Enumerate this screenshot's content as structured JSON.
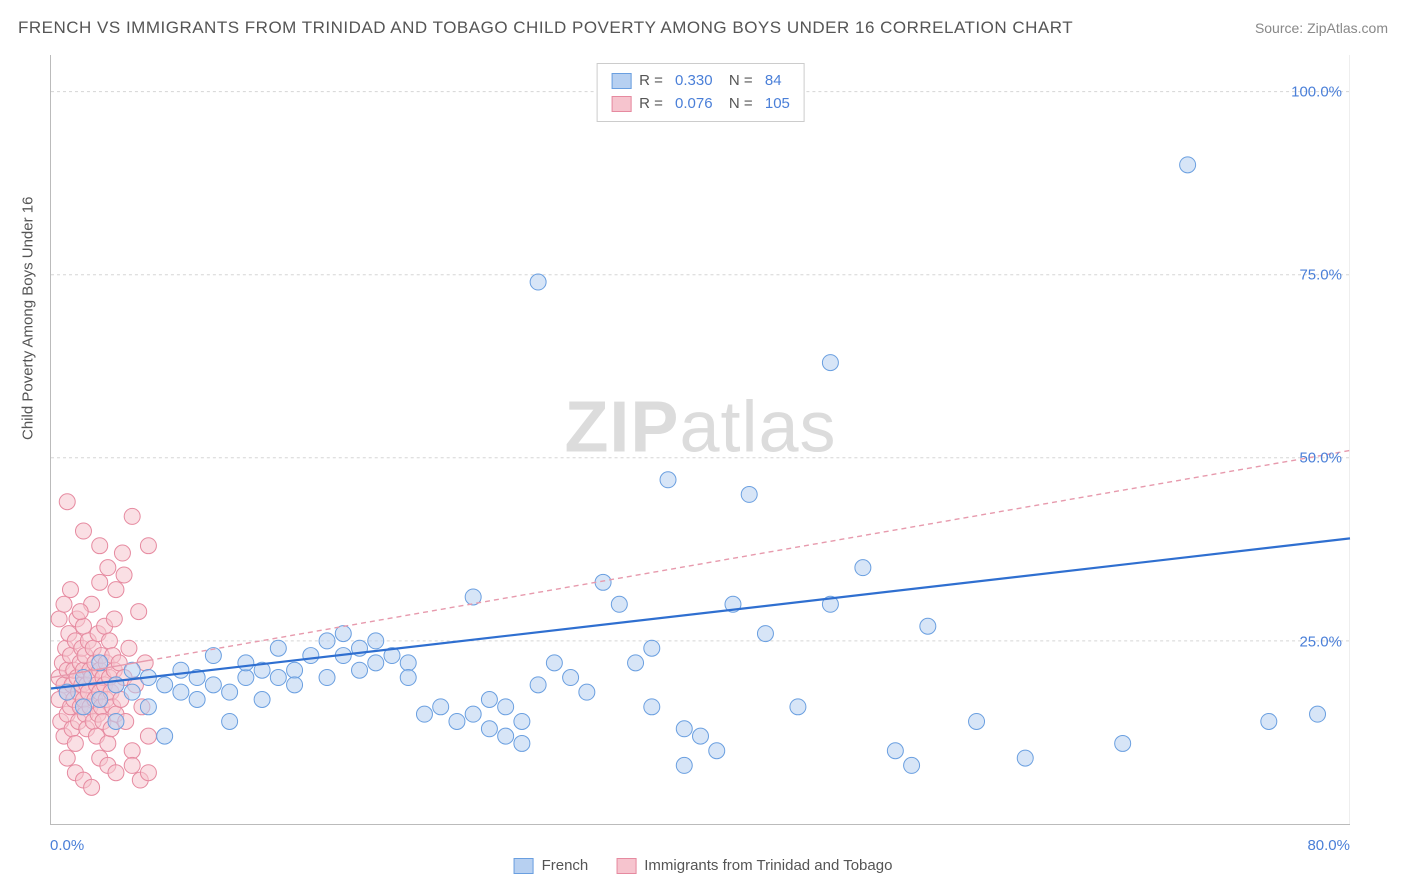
{
  "title": "FRENCH VS IMMIGRANTS FROM TRINIDAD AND TOBAGO CHILD POVERTY AMONG BOYS UNDER 16 CORRELATION CHART",
  "source": "Source: ZipAtlas.com",
  "watermark_a": "ZIP",
  "watermark_b": "atlas",
  "ylabel": "Child Poverty Among Boys Under 16",
  "chart": {
    "type": "scatter",
    "xlim": [
      0,
      80
    ],
    "ylim": [
      0,
      105
    ],
    "yticks": [
      25,
      50,
      75,
      100
    ],
    "ytick_labels": [
      "25.0%",
      "50.0%",
      "75.0%",
      "100.0%"
    ],
    "xtick_left": "0.0%",
    "xtick_right": "80.0%",
    "grid_color": "#d5d5d5",
    "background_color": "#ffffff",
    "marker_radius": 8,
    "marker_opacity": 0.55,
    "series": [
      {
        "name": "French",
        "color_fill": "#b7d0f1",
        "color_stroke": "#6a9fe0",
        "r_value": "0.330",
        "n_value": "84",
        "trend": {
          "x1": 0,
          "y1": 18.5,
          "x2": 80,
          "y2": 39,
          "stroke": "#2f6fd0",
          "width": 2.2,
          "dash": "none",
          "solid_until_x": 80
        },
        "points": [
          [
            1,
            18
          ],
          [
            2,
            20
          ],
          [
            2,
            16
          ],
          [
            3,
            22
          ],
          [
            3,
            17
          ],
          [
            4,
            19
          ],
          [
            4,
            14
          ],
          [
            5,
            21
          ],
          [
            5,
            18
          ],
          [
            6,
            20
          ],
          [
            6,
            16
          ],
          [
            7,
            19
          ],
          [
            7,
            12
          ],
          [
            8,
            18
          ],
          [
            8,
            21
          ],
          [
            9,
            20
          ],
          [
            9,
            17
          ],
          [
            10,
            19
          ],
          [
            10,
            23
          ],
          [
            11,
            18
          ],
          [
            11,
            14
          ],
          [
            12,
            20
          ],
          [
            12,
            22
          ],
          [
            13,
            21
          ],
          [
            13,
            17
          ],
          [
            14,
            20
          ],
          [
            14,
            24
          ],
          [
            15,
            21
          ],
          [
            15,
            19
          ],
          [
            16,
            23
          ],
          [
            17,
            25
          ],
          [
            17,
            20
          ],
          [
            18,
            23
          ],
          [
            18,
            26
          ],
          [
            19,
            24
          ],
          [
            19,
            21
          ],
          [
            20,
            25
          ],
          [
            20,
            22
          ],
          [
            21,
            23
          ],
          [
            22,
            22
          ],
          [
            22,
            20
          ],
          [
            23,
            15
          ],
          [
            24,
            16
          ],
          [
            25,
            14
          ],
          [
            26,
            31
          ],
          [
            26,
            15
          ],
          [
            27,
            17
          ],
          [
            27,
            13
          ],
          [
            28,
            16
          ],
          [
            28,
            12
          ],
          [
            29,
            14
          ],
          [
            29,
            11
          ],
          [
            30,
            74
          ],
          [
            30,
            19
          ],
          [
            31,
            22
          ],
          [
            32,
            20
          ],
          [
            33,
            18
          ],
          [
            34,
            33
          ],
          [
            35,
            30
          ],
          [
            36,
            22
          ],
          [
            37,
            24
          ],
          [
            37,
            16
          ],
          [
            38,
            47
          ],
          [
            39,
            8
          ],
          [
            39,
            13
          ],
          [
            40,
            12
          ],
          [
            41,
            10
          ],
          [
            42,
            30
          ],
          [
            43,
            45
          ],
          [
            44,
            26
          ],
          [
            46,
            16
          ],
          [
            48,
            63
          ],
          [
            48,
            30
          ],
          [
            50,
            35
          ],
          [
            52,
            10
          ],
          [
            53,
            8
          ],
          [
            54,
            27
          ],
          [
            57,
            14
          ],
          [
            60,
            9
          ],
          [
            66,
            11
          ],
          [
            70,
            90
          ],
          [
            75,
            14
          ],
          [
            78,
            15
          ]
        ]
      },
      {
        "name": "Immigrants from Trinidad and Tobago",
        "color_fill": "#f6c4ce",
        "color_stroke": "#e68aa0",
        "r_value": "0.076",
        "n_value": "105",
        "trend": {
          "x1": 0,
          "y1": 20,
          "x2": 80,
          "y2": 51,
          "stroke": "#e79aad",
          "width": 1.4,
          "dash": "5,4",
          "solid_until_x": 6
        },
        "points": [
          [
            0.5,
            17
          ],
          [
            0.5,
            20
          ],
          [
            0.6,
            14
          ],
          [
            0.7,
            22
          ],
          [
            0.8,
            19
          ],
          [
            0.8,
            12
          ],
          [
            0.9,
            24
          ],
          [
            1,
            18
          ],
          [
            1,
            15
          ],
          [
            1,
            21
          ],
          [
            1.1,
            26
          ],
          [
            1.2,
            16
          ],
          [
            1.2,
            23
          ],
          [
            1.3,
            19
          ],
          [
            1.3,
            13
          ],
          [
            1.4,
            21
          ],
          [
            1.4,
            17
          ],
          [
            1.5,
            25
          ],
          [
            1.5,
            11
          ],
          [
            1.6,
            20
          ],
          [
            1.6,
            28
          ],
          [
            1.7,
            18
          ],
          [
            1.7,
            14
          ],
          [
            1.8,
            22
          ],
          [
            1.8,
            16
          ],
          [
            1.9,
            24
          ],
          [
            1.9,
            19
          ],
          [
            2,
            21
          ],
          [
            2,
            17
          ],
          [
            2,
            27
          ],
          [
            2.1,
            15
          ],
          [
            2.1,
            23
          ],
          [
            2.2,
            19
          ],
          [
            2.2,
            13
          ],
          [
            2.3,
            25
          ],
          [
            2.3,
            18
          ],
          [
            2.4,
            21
          ],
          [
            2.4,
            16
          ],
          [
            2.5,
            30
          ],
          [
            2.5,
            20
          ],
          [
            2.6,
            14
          ],
          [
            2.6,
            24
          ],
          [
            2.7,
            17
          ],
          [
            2.7,
            22
          ],
          [
            2.8,
            19
          ],
          [
            2.8,
            12
          ],
          [
            2.9,
            26
          ],
          [
            2.9,
            15
          ],
          [
            3,
            21
          ],
          [
            3,
            18
          ],
          [
            3,
            33
          ],
          [
            3.1,
            16
          ],
          [
            3.1,
            23
          ],
          [
            3.2,
            20
          ],
          [
            3.2,
            14
          ],
          [
            3.3,
            27
          ],
          [
            3.3,
            19
          ],
          [
            3.4,
            22
          ],
          [
            3.4,
            17
          ],
          [
            3.5,
            35
          ],
          [
            3.5,
            11
          ],
          [
            3.6,
            20
          ],
          [
            3.6,
            25
          ],
          [
            3.7,
            18
          ],
          [
            3.7,
            13
          ],
          [
            3.8,
            23
          ],
          [
            3.8,
            16
          ],
          [
            3.9,
            21
          ],
          [
            3.9,
            28
          ],
          [
            4,
            19
          ],
          [
            4,
            15
          ],
          [
            4,
            32
          ],
          [
            4.2,
            22
          ],
          [
            4.3,
            17
          ],
          [
            4.4,
            37
          ],
          [
            4.5,
            20
          ],
          [
            4.6,
            14
          ],
          [
            4.8,
            24
          ],
          [
            5,
            42
          ],
          [
            5,
            10
          ],
          [
            5,
            8
          ],
          [
            5.2,
            19
          ],
          [
            5.4,
            29
          ],
          [
            5.5,
            6
          ],
          [
            5.6,
            16
          ],
          [
            5.8,
            22
          ],
          [
            6,
            38
          ],
          [
            6,
            12
          ],
          [
            6,
            7
          ],
          [
            1,
            9
          ],
          [
            1.5,
            7
          ],
          [
            2,
            6
          ],
          [
            2.5,
            5
          ],
          [
            3,
            9
          ],
          [
            3.5,
            8
          ],
          [
            4,
            7
          ],
          [
            1,
            44
          ],
          [
            2,
            40
          ],
          [
            3,
            38
          ],
          [
            4.5,
            34
          ],
          [
            0.5,
            28
          ],
          [
            0.8,
            30
          ],
          [
            1.2,
            32
          ],
          [
            1.8,
            29
          ]
        ]
      }
    ]
  },
  "legend_bottom": [
    {
      "label": "French",
      "fill": "#b7d0f1",
      "stroke": "#6a9fe0"
    },
    {
      "label": "Immigrants from Trinidad and Tobago",
      "fill": "#f6c4ce",
      "stroke": "#e68aa0"
    }
  ]
}
